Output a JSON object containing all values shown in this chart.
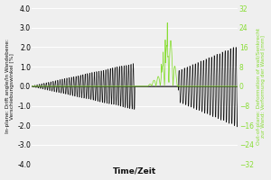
{
  "left_ylabel_line1": "In-plane: Drift angle/In Wandebene:",
  "left_ylabel_line2": "Verschiebungswinkel [%]",
  "right_ylabel_line1": "Out-of-plane: Deformation of wall/Senkrecht",
  "right_ylabel_line2": "zur Wand: Verformung der Wand [mm]",
  "xlabel": "Time/Zeit",
  "left_ylim": [
    -4.0,
    4.0
  ],
  "right_ylim": [
    -32,
    32
  ],
  "left_yticks": [
    -4.0,
    -3.0,
    -2.0,
    -1.0,
    0.0,
    1.0,
    2.0,
    3.0,
    4.0
  ],
  "right_yticks": [
    -32,
    -24,
    -16,
    -8,
    0,
    8,
    16,
    24,
    32
  ],
  "background_color": "#efefef",
  "black_color": "#111111",
  "green_color": "#88dd33",
  "grid_color": "#ffffff"
}
